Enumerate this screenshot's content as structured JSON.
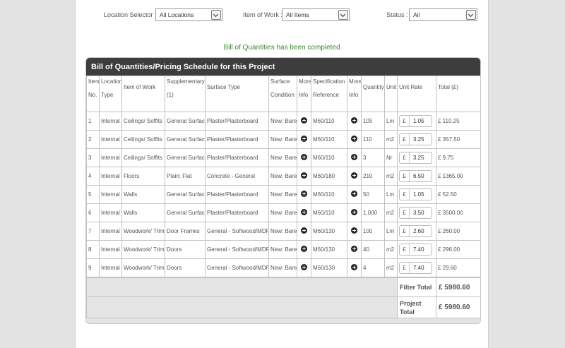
{
  "filters": {
    "location_label": "Location Selector :",
    "location_value": "All Locations",
    "item_label": "Item of Work :",
    "item_value": "All Items",
    "status_label": "Status :",
    "status_value": "All"
  },
  "message": "Bill of Quantities has been completed",
  "boq": {
    "title": "Bill of Quantities/Pricing Schedule for this Project",
    "headers": {
      "item_no_1": "Item",
      "item_no_2": "No.",
      "location_1": "Location",
      "location_2": "Type",
      "item_of_work": "Item of Work",
      "supplementary_1": "Supplementary",
      "supplementary_2": "(1)",
      "surface_type": "Surface Type",
      "surface_condition_1": "Surface",
      "surface_condition_2": "Condition",
      "more_info_1": "More",
      "more_info_2": "Info",
      "spec_1": "Specification",
      "spec_2": "Reference",
      "more_info2_1": "More",
      "more_info2_2": "Info",
      "quantity": "Quantity",
      "unit": "Unit",
      "unit_rate": "Unit Rate",
      "total": "Total (£)"
    },
    "rows": [
      {
        "no": "1",
        "location": "Internal",
        "work": "Ceilings/ Soffits",
        "supp": "General Surfaces",
        "surface": "Plaster/Plasterboard",
        "condition": "New: Bare",
        "spec": "M60/110",
        "qty": "105",
        "unit": "Lm",
        "currency": "£",
        "rate": "1.05",
        "total": "£ 110.25"
      },
      {
        "no": "2",
        "location": "Internal",
        "work": "Ceilings/ Soffits",
        "supp": "General Surfaces",
        "surface": "Plaster/Plasterboard",
        "condition": "New: Bare",
        "spec": "M60/110",
        "qty": "110",
        "unit": "m2",
        "currency": "£",
        "rate": "3.25",
        "total": "£ 357.50"
      },
      {
        "no": "3",
        "location": "Internal",
        "work": "Ceilings/ Soffits",
        "supp": "General Surfaces",
        "surface": "Plaster/Plasterboard",
        "condition": "New: Bare",
        "spec": "M60/110",
        "qty": "3",
        "unit": "Nr",
        "currency": "£",
        "rate": "3.25",
        "total": "£ 9.75"
      },
      {
        "no": "4",
        "location": "Internal",
        "work": "Floors",
        "supp": "Plain: Flat",
        "surface": "Concrete - General",
        "condition": "New: Bare",
        "spec": "M60/180",
        "qty": "210",
        "unit": "m2",
        "currency": "£",
        "rate": "6.50",
        "total": "£ 1365.00"
      },
      {
        "no": "5",
        "location": "Internal",
        "work": "Walls",
        "supp": "General Surfaces",
        "surface": "Plaster/Plasterboard",
        "condition": "New: Bare",
        "spec": "M60/110",
        "qty": "50",
        "unit": "Lm",
        "currency": "£",
        "rate": "1.05",
        "total": "£ 52.50"
      },
      {
        "no": "6",
        "location": "Internal",
        "work": "Walls",
        "supp": "General Surfaces",
        "surface": "Plaster/Plasterboard",
        "condition": "New: Bare",
        "spec": "M60/110",
        "qty": "1,000",
        "unit": "m2",
        "currency": "£",
        "rate": "3.50",
        "total": "£ 3500.00"
      },
      {
        "no": "7",
        "location": "Internal",
        "work": "Woodwork/ Trim",
        "supp": "Door Frames",
        "surface": "General - Softwood/MDF/Plywood",
        "condition": "New: Bare",
        "spec": "M60/130",
        "qty": "100",
        "unit": "Lm",
        "currency": "£",
        "rate": "2.60",
        "total": "£ 260.00"
      },
      {
        "no": "8",
        "location": "Internal",
        "work": "Woodwork/ Trim",
        "supp": "Doors",
        "surface": "General - Softwood/MDF/Plywood",
        "condition": "New: Bare",
        "spec": "M60/130",
        "qty": "40",
        "unit": "m2",
        "currency": "£",
        "rate": "7.40",
        "total": "£ 296.00"
      },
      {
        "no": "9",
        "location": "Internal",
        "work": "Woodwork/ Trim",
        "supp": "Doors",
        "surface": "General - Softwood/MDF/Plywood",
        "condition": "New: Bare",
        "spec": "M60/130",
        "qty": "4",
        "unit": "m2",
        "currency": "£",
        "rate": "7.40",
        "total": "£ 29.60"
      }
    ],
    "filter_total_label": "Filter Total",
    "filter_total_value": "£ 5980.60",
    "project_total_label": "Project Total",
    "project_total_value": "£ 5980.60"
  }
}
